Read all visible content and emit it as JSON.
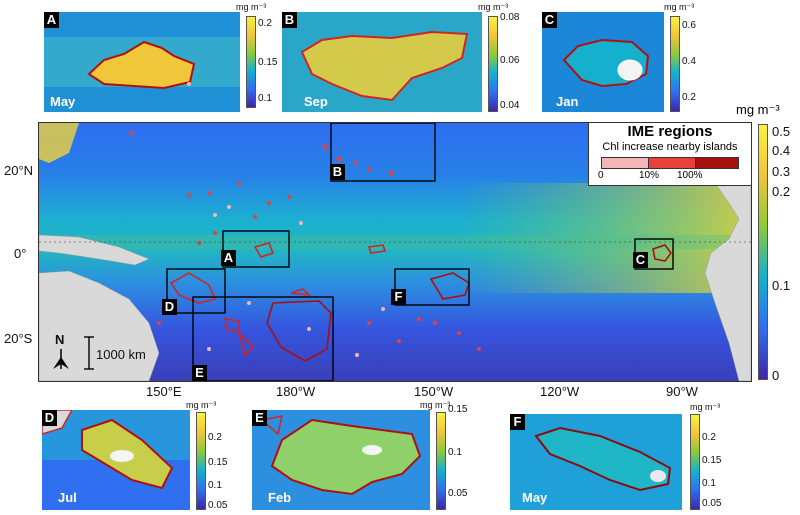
{
  "units": "mg m⁻³",
  "main_map": {
    "lat_ticks": [
      "20°N",
      "0°",
      "20°S"
    ],
    "lon_ticks": [
      "150°E",
      "180°W",
      "150°W",
      "120°W",
      "90°W"
    ],
    "scale_bar": "1000 km",
    "north_label": "N",
    "boxes": [
      "A",
      "B",
      "C",
      "D",
      "E",
      "F"
    ],
    "colorbar_ticks": [
      "0.5",
      "0.4",
      "0.3",
      "0.2",
      "0.1",
      "0"
    ]
  },
  "legend": {
    "title": "IME regions",
    "subtitle": "Chl increase nearby islands",
    "ticks": [
      "0",
      "10%",
      "100%"
    ],
    "colors": [
      "#f4b6b6",
      "#e8403a",
      "#a80f0f"
    ]
  },
  "insets": [
    {
      "id": "A",
      "month": "May",
      "ticks": [
        "0.2",
        "0.15",
        "0.1"
      ]
    },
    {
      "id": "B",
      "month": "Sep",
      "ticks": [
        "0.08",
        "0.06",
        "0.04"
      ]
    },
    {
      "id": "C",
      "month": "Jan",
      "ticks": [
        "0.6",
        "0.4",
        "0.2"
      ]
    },
    {
      "id": "D",
      "month": "Jul",
      "ticks": [
        "0.2",
        "0.15",
        "0.1",
        "0.05"
      ]
    },
    {
      "id": "E",
      "month": "Feb",
      "ticks": [
        "0.15",
        "0.1",
        "0.05"
      ]
    },
    {
      "id": "F",
      "month": "May",
      "ticks": [
        "0.2",
        "0.15",
        "0.1",
        "0.05"
      ]
    }
  ],
  "colors": {
    "ocean_low": "#3b2f9e",
    "ocean_mid": "#1fa0d8",
    "ocean_high": "#f2d23a",
    "land": "#d9d9d9",
    "ime_outline": "#b01010"
  }
}
